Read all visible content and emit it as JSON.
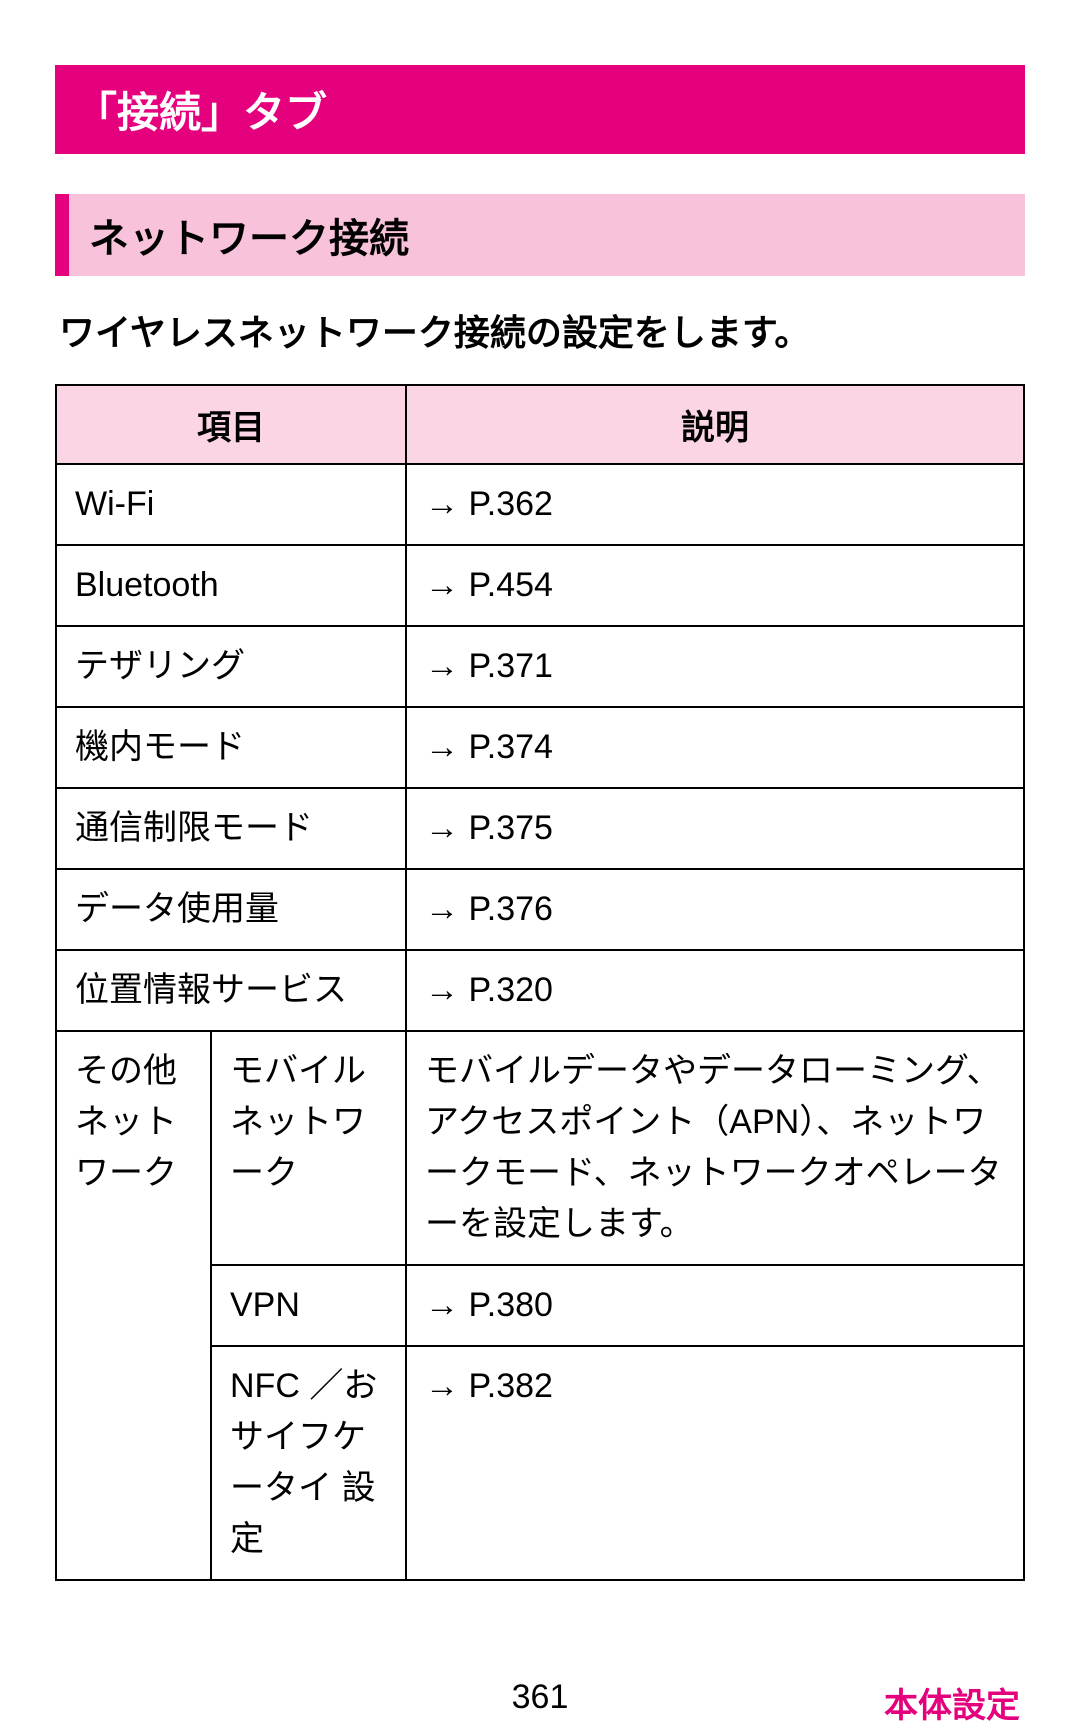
{
  "title": "「接続」タブ",
  "section": "ネットワーク接続",
  "description": "ワイヤレスネットワーク接続の設定をします。",
  "table": {
    "header_item": "項目",
    "header_desc": "説明",
    "rows_simple": [
      {
        "item": "Wi-Fi",
        "desc": "→ P.362"
      },
      {
        "item": "Bluetooth",
        "desc": "→ P.454"
      },
      {
        "item": "テザリング",
        "desc": "→ P.371"
      },
      {
        "item": "機内モード",
        "desc": "→ P.374"
      },
      {
        "item": "通信制限モード",
        "desc": "→ P.375"
      },
      {
        "item": "データ使用量",
        "desc": "→ P.376"
      },
      {
        "item": "位置情報サービス",
        "desc": "→ P.320"
      }
    ],
    "group": {
      "label": "その他ネットワーク",
      "subrows": [
        {
          "sub": "モバイルネットワーク",
          "desc": "モバイルデータやデータローミング、アクセスポイント（APN）、ネットワークモード、ネットワークオペレーターを設定します。"
        },
        {
          "sub": "VPN",
          "desc": "→ P.380"
        },
        {
          "sub": "NFC ／おサイフケータイ 設定",
          "desc": "→ P.382"
        }
      ]
    }
  },
  "footer": {
    "page_number": "361",
    "label": "本体設定"
  },
  "colors": {
    "accent": "#e5007e",
    "header_bg": "#fbd4e5",
    "section_bg": "#f9c2db",
    "page_bg": "#ffffff",
    "text": "#000000"
  },
  "typography": {
    "title_fontsize": 42,
    "section_fontsize": 40,
    "desc_fontsize": 36,
    "table_fontsize": 34
  }
}
